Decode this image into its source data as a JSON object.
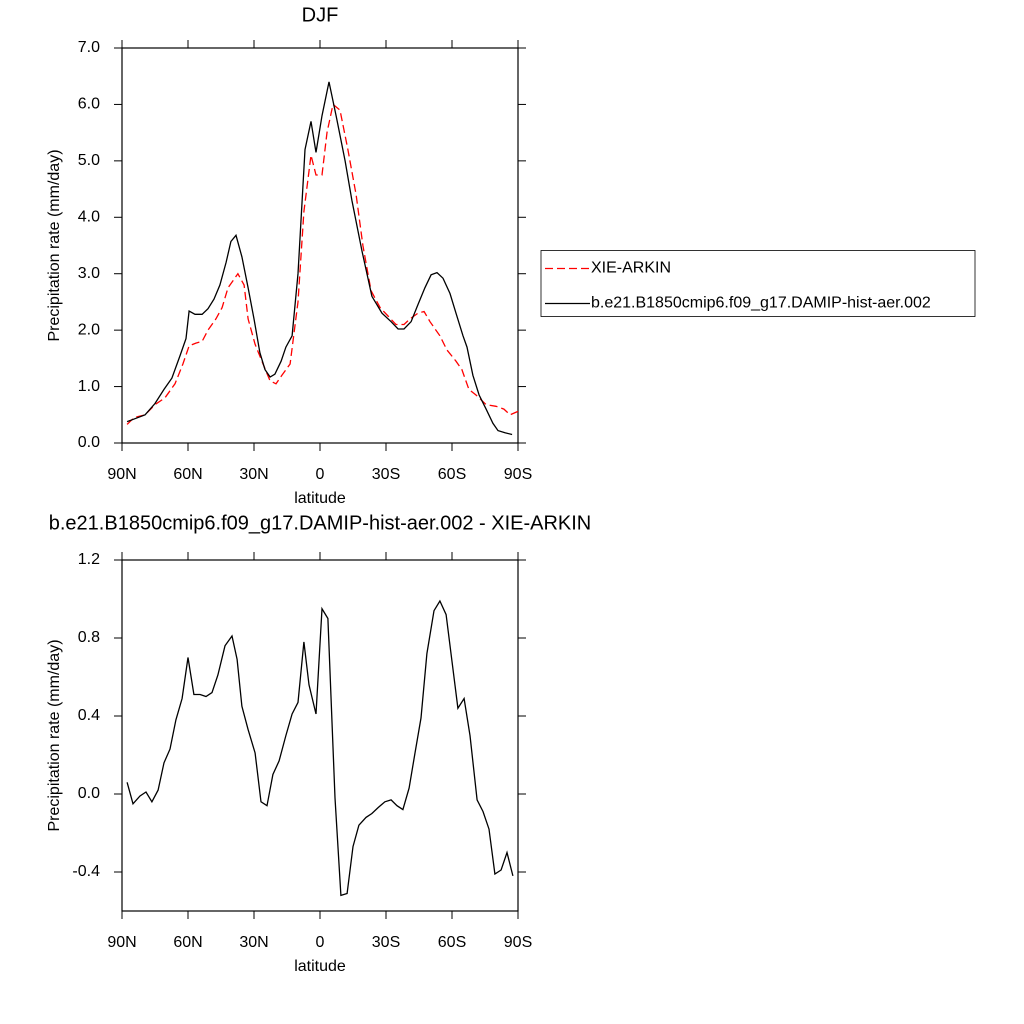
{
  "chart_data": [
    {
      "type": "line",
      "title": "DJF",
      "xlabel": "latitude",
      "ylabel": "Precipitation rate (mm/day)",
      "xlim": [
        90,
        -90
      ],
      "ylim": [
        0,
        7
      ],
      "xticks": [
        {
          "value": 90,
          "label": "90N"
        },
        {
          "value": 60,
          "label": "60N"
        },
        {
          "value": 30,
          "label": "30N"
        },
        0,
        {
          "value": -30,
          "label": "30S"
        },
        {
          "value": -60,
          "label": "60S"
        },
        {
          "value": -90,
          "label": "90S"
        }
      ],
      "yticks": [
        {
          "value": 0,
          "label": "0.0"
        },
        {
          "value": 1,
          "label": "1.0"
        },
        {
          "value": 2,
          "label": "2.0"
        },
        {
          "value": 3,
          "label": "3.0"
        },
        {
          "value": 4,
          "label": "4.0"
        },
        {
          "value": 5,
          "label": "5.0"
        },
        {
          "value": 6,
          "label": "6.0"
        },
        {
          "value": 7,
          "label": "7.0"
        }
      ],
      "legend": "right",
      "series": [
        {
          "name": "XIE-ARKIN",
          "color": "#ff0000",
          "dashed": true,
          "x": [
            87.7,
            84.5,
            79.5,
            75,
            70.5,
            65.9,
            62.3,
            59.5,
            56.4,
            53.6,
            50.9,
            47.3,
            44.5,
            41.8,
            37.3,
            34.5,
            32.7,
            29.5,
            26.4,
            22.7,
            20,
            17.3,
            13.6,
            10,
            7.3,
            4.1,
            1.8,
            -0.9,
            -3.2,
            -5.9,
            -9.1,
            -12.7,
            -16.4,
            -19.5,
            -23.2,
            -27.3,
            -30.9,
            -34.5,
            -38.2,
            -40.9,
            -44.5,
            -47.3,
            -50,
            -54.5,
            -57.7,
            -61.8,
            -64.5,
            -67.7,
            -70.9,
            -75.5,
            -80,
            -83.6,
            -86.4,
            -90
          ],
          "values": [
            0.33,
            0.45,
            0.5,
            0.68,
            0.8,
            1.05,
            1.4,
            1.72,
            1.77,
            1.8,
            2.0,
            2.2,
            2.4,
            2.75,
            3.0,
            2.8,
            2.2,
            1.75,
            1.45,
            1.1,
            1.05,
            1.2,
            1.4,
            2.5,
            4.1,
            5.1,
            4.75,
            4.75,
            5.5,
            6.0,
            5.9,
            5.2,
            4.4,
            3.5,
            2.7,
            2.4,
            2.25,
            2.1,
            2.1,
            2.2,
            2.3,
            2.33,
            2.15,
            1.9,
            1.65,
            1.45,
            1.3,
            0.95,
            0.85,
            0.68,
            0.65,
            0.6,
            0.5,
            0.56
          ]
        },
        {
          "name": "b.e21.B1850cmip6.f09_g17.DAMIP-hist-aer.002",
          "color": "#000000",
          "dashed": false,
          "x": [
            87.7,
            84.1,
            79.5,
            75,
            70.9,
            67.3,
            63.6,
            60.9,
            59.5,
            56.8,
            53.6,
            50.9,
            48.2,
            45.5,
            42.7,
            40.5,
            38.2,
            35.5,
            32.7,
            30,
            27.3,
            25,
            22.7,
            20.5,
            17.7,
            15.5,
            12.7,
            10,
            6.8,
            4.1,
            1.8,
            -0.9,
            -4.1,
            -7.3,
            -11.4,
            -14.5,
            -19.1,
            -23.6,
            -28.2,
            -32.3,
            -35.5,
            -38.2,
            -41.4,
            -44.5,
            -47.7,
            -50.5,
            -53.2,
            -55.9,
            -59.1,
            -61.8,
            -65,
            -66.8,
            -69.5,
            -72.3,
            -75.5,
            -78.6,
            -80.9,
            -84.1,
            -87.3
          ],
          "values": [
            0.38,
            0.43,
            0.5,
            0.7,
            0.95,
            1.15,
            1.55,
            1.85,
            2.34,
            2.28,
            2.28,
            2.38,
            2.55,
            2.8,
            3.2,
            3.57,
            3.68,
            3.3,
            2.75,
            2.2,
            1.6,
            1.3,
            1.17,
            1.22,
            1.45,
            1.7,
            1.9,
            3.0,
            5.2,
            5.7,
            5.15,
            5.8,
            6.4,
            5.8,
            5.0,
            4.3,
            3.4,
            2.6,
            2.3,
            2.15,
            2.02,
            2.02,
            2.15,
            2.45,
            2.75,
            2.98,
            3.02,
            2.92,
            2.65,
            2.3,
            1.9,
            1.7,
            1.2,
            0.85,
            0.6,
            0.35,
            0.22,
            0.18,
            0.15
          ]
        }
      ]
    },
    {
      "type": "line",
      "title": "b.e21.B1850cmip6.f09_g17.DAMIP-hist-aer.002 - XIE-ARKIN",
      "xlabel": "latitude",
      "ylabel": "Precipitation rate (mm/day)",
      "xlim": [
        90,
        -90
      ],
      "ylim": [
        -0.6,
        1.2
      ],
      "xticks": [
        {
          "value": 90,
          "label": "90N"
        },
        {
          "value": 60,
          "label": "60N"
        },
        {
          "value": 30,
          "label": "30N"
        },
        0,
        {
          "value": -30,
          "label": "30S"
        },
        {
          "value": -60,
          "label": "60S"
        },
        {
          "value": -90,
          "label": "90S"
        }
      ],
      "yticks": [
        -0.4,
        {
          "value": 0,
          "label": "0.0"
        },
        0.4,
        0.8,
        1.2
      ],
      "series": [
        {
          "color": "#000000",
          "dashed": false,
          "x": [
            87.7,
            85,
            81.8,
            79.1,
            76.4,
            73.6,
            70.9,
            68.2,
            65.5,
            62.7,
            60,
            57.3,
            54.5,
            51.8,
            49.1,
            46.4,
            43.2,
            40,
            37.7,
            35.5,
            32.7,
            29.5,
            26.8,
            24.1,
            21.4,
            18.6,
            15.5,
            12.7,
            10,
            7.3,
            5,
            1.8,
            -0.9,
            -3.6,
            -6.8,
            -9.5,
            -12.3,
            -15,
            -17.7,
            -20.9,
            -23.6,
            -26.4,
            -29.5,
            -32.3,
            -35,
            -37.7,
            -40.5,
            -43.2,
            -45.9,
            -48.6,
            -51.8,
            -54.5,
            -57.3,
            -60,
            -62.7,
            -65.5,
            -68.2,
            -71.4,
            -74.1,
            -76.8,
            -79.5,
            -82.3,
            -85,
            -87.7
          ],
          "values": [
            0.06,
            -0.05,
            -0.01,
            0.01,
            -0.04,
            0.02,
            0.16,
            0.23,
            0.38,
            0.49,
            0.7,
            0.51,
            0.51,
            0.5,
            0.52,
            0.61,
            0.76,
            0.81,
            0.69,
            0.45,
            0.33,
            0.21,
            -0.04,
            -0.06,
            0.1,
            0.17,
            0.3,
            0.41,
            0.47,
            0.78,
            0.56,
            0.41,
            0.95,
            0.9,
            -0.02,
            -0.52,
            -0.51,
            -0.27,
            -0.16,
            -0.12,
            -0.1,
            -0.07,
            -0.04,
            -0.03,
            -0.06,
            -0.08,
            0.03,
            0.21,
            0.39,
            0.72,
            0.94,
            0.99,
            0.92,
            0.68,
            0.44,
            0.49,
            0.3,
            -0.03,
            -0.09,
            -0.18,
            -0.41,
            -0.39,
            -0.3,
            -0.42
          ]
        }
      ]
    }
  ]
}
